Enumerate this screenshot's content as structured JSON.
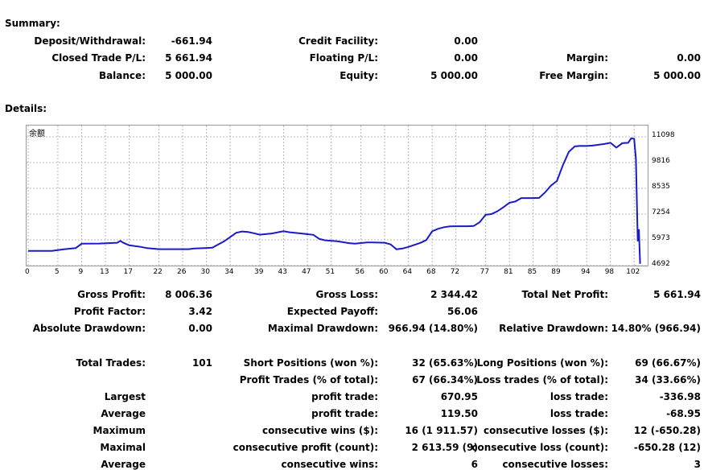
{
  "summary": {
    "title": "Summary:",
    "rows": [
      [
        {
          "label": "Deposit/Withdrawal:",
          "value": "-661.94"
        },
        {
          "label": "Credit Facility:",
          "value": "0.00"
        },
        {
          "label": "",
          "value": ""
        }
      ],
      [
        {
          "label": "Closed Trade P/L:",
          "value": "5 661.94"
        },
        {
          "label": "Floating P/L:",
          "value": "0.00"
        },
        {
          "label": "Margin:",
          "value": "0.00"
        }
      ],
      [
        {
          "label": "Balance:",
          "value": "5 000.00"
        },
        {
          "label": "Equity:",
          "value": "5 000.00"
        },
        {
          "label": "Free Margin:",
          "value": "5 000.00"
        }
      ]
    ]
  },
  "details": {
    "title": "Details:"
  },
  "chart_data": {
    "type": "line",
    "title": "余额",
    "series": [
      {
        "name": "",
        "color": "#1a1ac8",
        "points": [
          [
            0,
            5420
          ],
          [
            4,
            5420
          ],
          [
            6,
            5500
          ],
          [
            8,
            5560
          ],
          [
            9,
            5780
          ],
          [
            12,
            5790
          ],
          [
            15,
            5830
          ],
          [
            15.5,
            5920
          ],
          [
            16,
            5830
          ],
          [
            17,
            5700
          ],
          [
            19,
            5620
          ],
          [
            20,
            5560
          ],
          [
            22,
            5510
          ],
          [
            24,
            5510
          ],
          [
            27,
            5510
          ],
          [
            28,
            5540
          ],
          [
            31,
            5580
          ],
          [
            33,
            5900
          ],
          [
            35,
            6320
          ],
          [
            36,
            6390
          ],
          [
            37,
            6360
          ],
          [
            38,
            6300
          ],
          [
            39,
            6230
          ],
          [
            41,
            6290
          ],
          [
            43,
            6400
          ],
          [
            44,
            6350
          ],
          [
            46,
            6290
          ],
          [
            48,
            6220
          ],
          [
            49,
            6020
          ],
          [
            50,
            5950
          ],
          [
            52,
            5900
          ],
          [
            54,
            5810
          ],
          [
            55,
            5780
          ],
          [
            57,
            5840
          ],
          [
            58,
            5840
          ],
          [
            60,
            5830
          ],
          [
            61,
            5750
          ],
          [
            62,
            5500
          ],
          [
            63,
            5540
          ],
          [
            64,
            5620
          ],
          [
            66,
            5820
          ],
          [
            67,
            5960
          ],
          [
            68,
            6400
          ],
          [
            69,
            6520
          ],
          [
            70,
            6600
          ],
          [
            71,
            6640
          ],
          [
            72,
            6650
          ],
          [
            74,
            6650
          ],
          [
            75,
            6660
          ],
          [
            76,
            6850
          ],
          [
            77,
            7220
          ],
          [
            78,
            7260
          ],
          [
            79,
            7400
          ],
          [
            80,
            7600
          ],
          [
            81,
            7820
          ],
          [
            82,
            7880
          ],
          [
            83,
            8050
          ],
          [
            85,
            8050
          ],
          [
            86,
            8060
          ],
          [
            87,
            8330
          ],
          [
            88,
            8670
          ],
          [
            89,
            8900
          ],
          [
            90,
            9680
          ],
          [
            91,
            10350
          ],
          [
            92,
            10620
          ],
          [
            93,
            10650
          ],
          [
            94,
            10640
          ],
          [
            95,
            10660
          ],
          [
            96,
            10700
          ],
          [
            97,
            10740
          ],
          [
            98,
            10800
          ],
          [
            99,
            10560
          ],
          [
            100,
            10780
          ],
          [
            101,
            10800
          ],
          [
            101.5,
            11020
          ],
          [
            102,
            11000
          ],
          [
            102.3,
            10000
          ],
          [
            102.6,
            5900
          ],
          [
            102.8,
            6500
          ],
          [
            103,
            4780
          ]
        ]
      }
    ],
    "x_ticks": [
      "0",
      "5",
      "9",
      "13",
      "17",
      "22",
      "26",
      "30",
      "34",
      "39",
      "43",
      "47",
      "51",
      "56",
      "60",
      "64",
      "68",
      "72",
      "77",
      "81",
      "85",
      "89",
      "94",
      "98",
      "102"
    ],
    "y_ticks": [
      "11098",
      "9816",
      "8535",
      "7254",
      "5973",
      "4692"
    ],
    "xlim": [
      0,
      104
    ],
    "ylim": [
      4692,
      11098
    ],
    "grid": true
  },
  "stats": [
    [
      {
        "label": "Gross Profit:",
        "value": "8 006.36"
      },
      {
        "label": "Gross Loss:",
        "value": "2 344.42"
      },
      {
        "label": "Total Net Profit:",
        "value": "5 661.94"
      }
    ],
    [
      {
        "label": "Profit Factor:",
        "value": "3.42"
      },
      {
        "label": "Expected Payoff:",
        "value": "56.06"
      },
      {
        "label": "",
        "value": ""
      }
    ],
    [
      {
        "label": "Absolute Drawdown:",
        "value": "0.00"
      },
      {
        "label": "Maximal Drawdown:",
        "value": "966.94 (14.80%)"
      },
      {
        "label": "Relative Drawdown:",
        "value": "14.80% (966.94)"
      }
    ]
  ],
  "trades": [
    [
      {
        "label": "Total Trades:",
        "value": "101"
      },
      {
        "label": "Short Positions (won %):",
        "value": "32 (65.63%)"
      },
      {
        "label": "Long Positions (won %):",
        "value": "69 (66.67%)"
      }
    ],
    [
      {
        "label": "",
        "value": ""
      },
      {
        "label": "Profit Trades (% of total):",
        "value": "67 (66.34%)"
      },
      {
        "label": "Loss trades (% of total):",
        "value": "34 (33.66%)"
      }
    ],
    [
      {
        "label": "Largest",
        "value": ""
      },
      {
        "label": "profit trade:",
        "value": "670.95"
      },
      {
        "label": "loss trade:",
        "value": "-336.98"
      }
    ],
    [
      {
        "label": "Average",
        "value": ""
      },
      {
        "label": "profit trade:",
        "value": "119.50"
      },
      {
        "label": "loss trade:",
        "value": "-68.95"
      }
    ],
    [
      {
        "label": "Maximum",
        "value": ""
      },
      {
        "label": "consecutive wins ($):",
        "value": "16 (1 911.57)"
      },
      {
        "label": "consecutive losses ($):",
        "value": "12 (-650.28)"
      }
    ],
    [
      {
        "label": "Maximal",
        "value": ""
      },
      {
        "label": "consecutive profit (count):",
        "value": "2 613.59 (9)"
      },
      {
        "label": "consecutive loss (count):",
        "value": "-650.28 (12)"
      }
    ],
    [
      {
        "label": "Average",
        "value": ""
      },
      {
        "label": "consecutive wins:",
        "value": "6"
      },
      {
        "label": "consecutive losses:",
        "value": "3"
      }
    ]
  ]
}
